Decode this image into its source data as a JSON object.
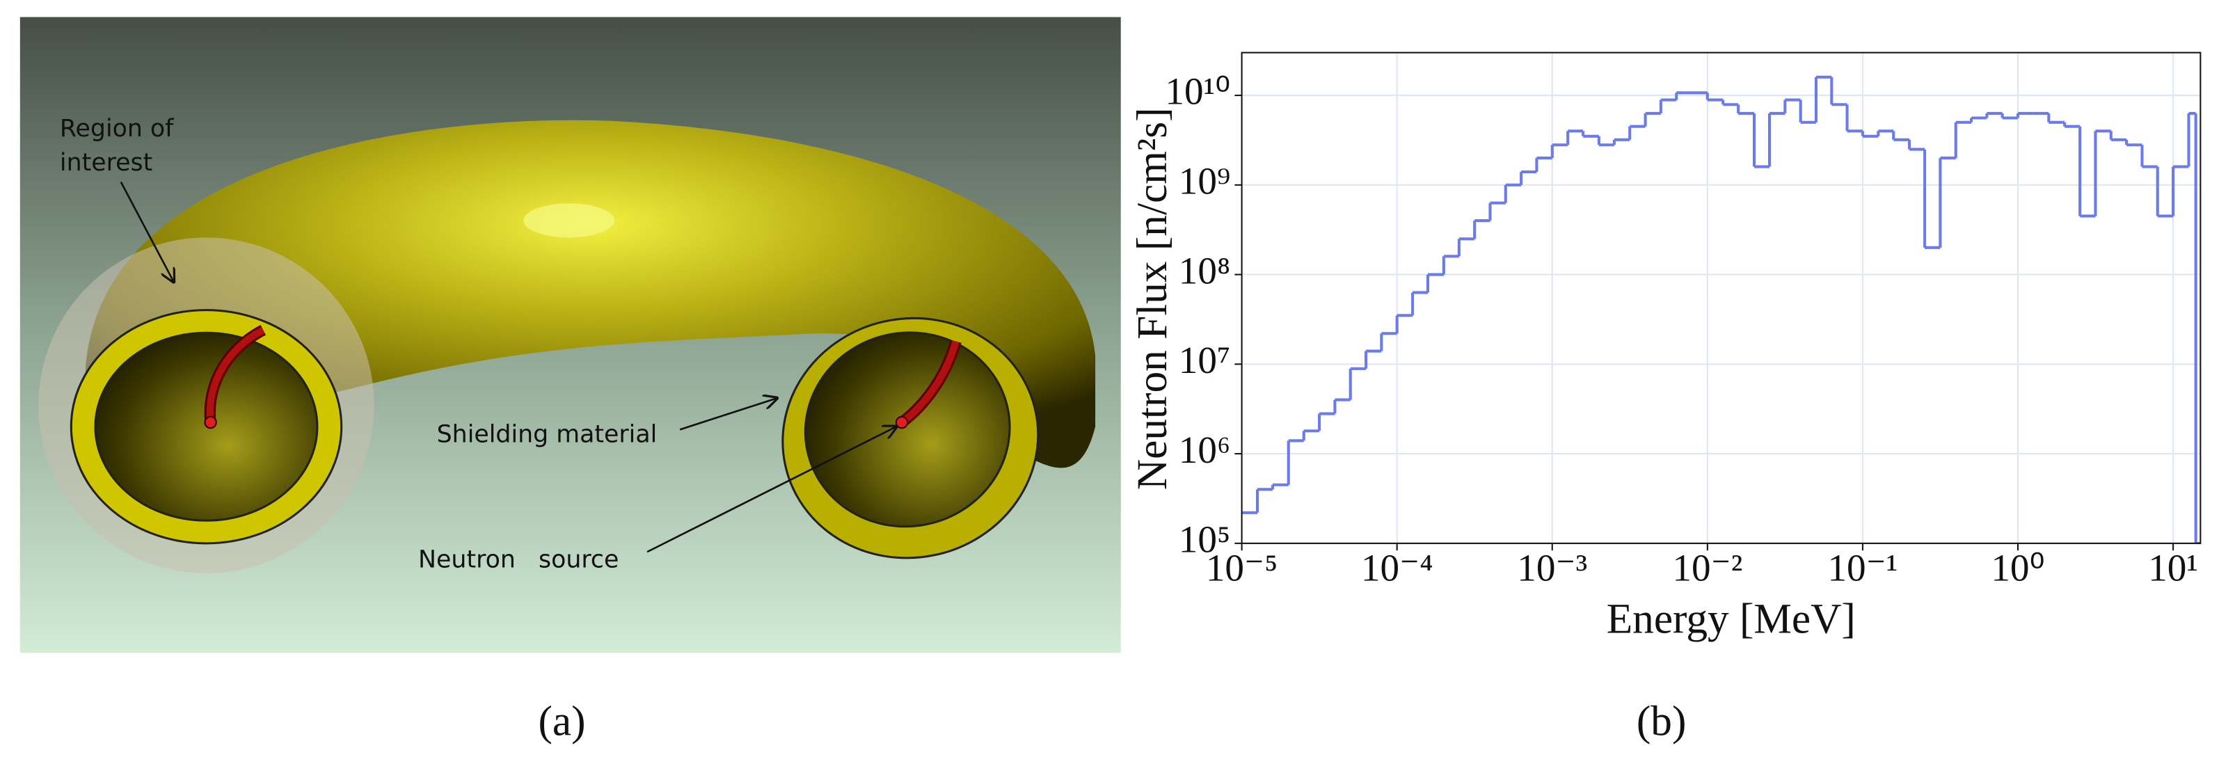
{
  "panel_a": {
    "region_label": [
      "Region of",
      "interest"
    ],
    "shielding_label": "Shielding material",
    "source_label": "Neutron   source",
    "caption": "(a)"
  },
  "chart_data": {
    "type": "histogram",
    "caption": "(b)",
    "xlabel": "Energy [MeV]",
    "ylabel": "Neutron Flux [n/cm²s]",
    "xscale": "log",
    "yscale": "log",
    "grid": true,
    "color": "#6b7bea",
    "xlim": [
      1e-05,
      15
    ],
    "ylim": [
      100000,
      30000000000
    ],
    "xticks": [
      {
        "value": 1e-05,
        "label": "10⁻⁵"
      },
      {
        "value": 0.0001,
        "label": "10⁻⁴"
      },
      {
        "value": 0.001,
        "label": "10⁻³"
      },
      {
        "value": 0.01,
        "label": "10⁻²"
      },
      {
        "value": 0.1,
        "label": "10⁻¹"
      },
      {
        "value": 1,
        "label": "10⁰"
      },
      {
        "value": 10,
        "label": "10¹"
      }
    ],
    "yticks": [
      {
        "value": 100000,
        "label": "10⁵"
      },
      {
        "value": 1000000,
        "label": "10⁶"
      },
      {
        "value": 10000000,
        "label": "10⁷"
      },
      {
        "value": 100000000,
        "label": "10⁸"
      },
      {
        "value": 1000000000,
        "label": "10⁹"
      },
      {
        "value": 10000000000,
        "label": "10¹⁰"
      }
    ],
    "bins": [
      1e-05,
      1.26e-05,
      1.58e-05,
      2e-05,
      2.51e-05,
      3.16e-05,
      3.98e-05,
      5.01e-05,
      6.31e-05,
      7.94e-05,
      0.0001,
      0.000126,
      0.000158,
      0.0002,
      0.000251,
      0.000316,
      0.000398,
      0.000501,
      0.000631,
      0.000794,
      0.001,
      0.00126,
      0.00158,
      0.002,
      0.00251,
      0.00316,
      0.00398,
      0.00501,
      0.00631,
      0.00794,
      0.01,
      0.0126,
      0.0158,
      0.02,
      0.0251,
      0.0316,
      0.0398,
      0.0501,
      0.0631,
      0.0794,
      0.1,
      0.126,
      0.158,
      0.2,
      0.251,
      0.316,
      0.398,
      0.501,
      0.631,
      0.794,
      1,
      1.26,
      1.58,
      2,
      2.51,
      3.16,
      3.98,
      5.01,
      6.31,
      7.94,
      10,
      12.6,
      14,
      15
    ],
    "values": [
      220000,
      400000,
      450000,
      1400000,
      1800000,
      2800000,
      4000000,
      8900000,
      14000000,
      22000000,
      35000000,
      63000000,
      100000000,
      160000000,
      250000000,
      400000000,
      630000000,
      1000000000,
      1400000000,
      2000000000,
      2800000000,
      4000000000,
      3500000000,
      2800000000,
      3200000000,
      4500000000,
      6300000000,
      8900000000,
      10700000000,
      10700000000,
      8900000000,
      7900000000,
      6300000000,
      1600000000,
      6300000000,
      8900000000,
      5000000000,
      16000000000,
      7900000000,
      4000000000,
      3500000000,
      4000000000,
      3200000000,
      2500000000,
      200000000,
      2000000000,
      5000000000,
      5600000000,
      6300000000,
      5600000000,
      6300000000,
      6300000000,
      5000000000,
      4500000000,
      450000000,
      4000000000,
      3200000000,
      2800000000,
      1600000000,
      450000000,
      1600000000,
      6300000000,
      100000
    ]
  }
}
